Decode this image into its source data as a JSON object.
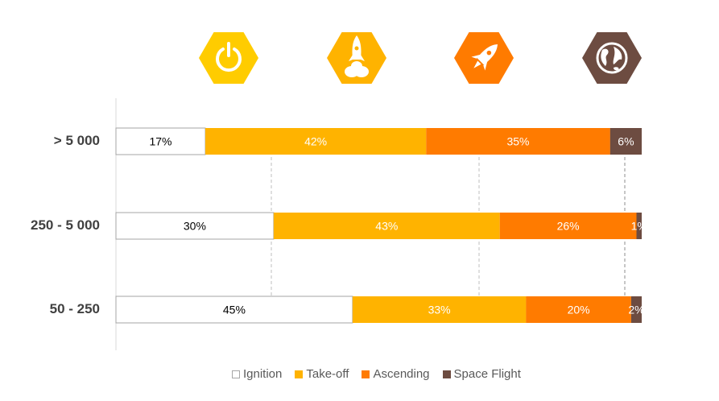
{
  "chart_data": {
    "type": "bar",
    "orientation": "horizontal",
    "stacked": true,
    "categories": [
      "> 5 000",
      "250 - 5 000",
      "50 - 250"
    ],
    "series": [
      {
        "name": "Ignition",
        "color": "#ffffff",
        "values": [
          17,
          30,
          45
        ],
        "labels": [
          "17%",
          "30%",
          "45%"
        ]
      },
      {
        "name": "Take-off",
        "color": "#ffb300",
        "values": [
          42,
          43,
          33
        ],
        "labels": [
          "42%",
          "43%",
          "33%"
        ]
      },
      {
        "name": "Ascending",
        "color": "#ff7b00",
        "values": [
          35,
          26,
          20
        ],
        "labels": [
          "35%",
          "26%",
          "20%"
        ]
      },
      {
        "name": "Space Flight",
        "color": "#6d4c41",
        "values": [
          6,
          1,
          2
        ],
        "labels": [
          "6%",
          "1%",
          "2%"
        ]
      }
    ],
    "xlim": [
      0,
      100
    ],
    "legend_position": "bottom",
    "grid": false
  },
  "stage_icons": [
    {
      "name": "power-icon",
      "color": "#ffcc00"
    },
    {
      "name": "rocket-launch-icon",
      "color": "#ffb300"
    },
    {
      "name": "rocket-flying-icon",
      "color": "#ff7b00"
    },
    {
      "name": "globe-icon",
      "color": "#6d4c41"
    }
  ]
}
